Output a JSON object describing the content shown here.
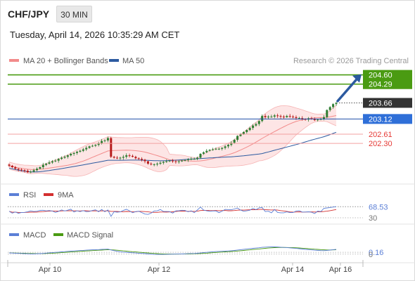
{
  "header": {
    "symbol": "CHF/JPY",
    "timeframe": "30 MIN",
    "datetime": "Tuesday, April 14, 2026 10:35:29 AM CET"
  },
  "legend": {
    "ma20": "MA 20 + Bollinger Bands",
    "ma50": "MA 50",
    "copyright": "Research © 2026 Trading Central"
  },
  "colors": {
    "candle_up": "#2e7d32",
    "candle_down": "#b71c1c",
    "ma20": "#f28b8b",
    "ma50": "#2c5aa0",
    "bollinger_fill": "#fde0e0",
    "target": "#4a9b12",
    "pivot": "#2f6fd8",
    "support": "#e53935",
    "current": "#333333",
    "rsi": "#5b7fd6",
    "rsi_ma": "#d32f2f",
    "macd": "#5b7fd6",
    "macd_signal": "#4a9b12"
  },
  "chart_data": [
    {
      "type": "candlestick",
      "series": [
        {
          "name": "MA 20 + Bollinger Bands"
        },
        {
          "name": "MA 50"
        }
      ],
      "ylim": [
        201.1,
        204.85
      ],
      "close_path": [
        201.55,
        201.5,
        201.45,
        201.42,
        201.4,
        201.38,
        201.33,
        201.35,
        201.4,
        201.45,
        201.5,
        201.58,
        201.62,
        201.66,
        201.7,
        201.72,
        201.78,
        201.82,
        201.85,
        201.9,
        201.95,
        201.98,
        202.02,
        202.05,
        202.1,
        202.15,
        202.2,
        202.22,
        202.25,
        202.3,
        202.38,
        202.4,
        202.48,
        201.85,
        201.82,
        201.8,
        201.82,
        201.85,
        201.9,
        201.88,
        201.85,
        201.8,
        201.78,
        201.75,
        201.7,
        201.62,
        201.6,
        201.6,
        201.62,
        201.65,
        201.68,
        201.7,
        201.72,
        201.7,
        201.68,
        201.7,
        201.72,
        201.74,
        201.76,
        201.78,
        201.78,
        201.82,
        201.95,
        202.0,
        202.05,
        202.08,
        202.1,
        202.12,
        202.12,
        202.15,
        202.2,
        202.25,
        202.32,
        202.42,
        202.55,
        202.62,
        202.68,
        202.75,
        202.82,
        202.9,
        202.95,
        203.05,
        203.22,
        203.18,
        203.2,
        203.2,
        203.24,
        203.22,
        203.2,
        203.18,
        203.22,
        203.2,
        203.18,
        203.15,
        203.15,
        203.12,
        203.1,
        203.14,
        203.12,
        203.08,
        203.1,
        203.12,
        203.18,
        203.42,
        203.52,
        203.62,
        203.66
      ],
      "levels": [
        {
          "value": "204.60",
          "kind": "target"
        },
        {
          "value": "204.29",
          "kind": "target"
        },
        {
          "value": "203.66",
          "kind": "current"
        },
        {
          "value": "203.12",
          "kind": "pivot"
        },
        {
          "value": "202.61",
          "kind": "support"
        },
        {
          "value": "202.30",
          "kind": "support"
        }
      ],
      "x_tick_labels": [
        "Apr 10",
        "Apr 12",
        "Apr 14",
        "Apr 16"
      ]
    },
    {
      "type": "line",
      "series": [
        {
          "name": "RSI"
        },
        {
          "name": "9MA"
        }
      ],
      "ylim": [
        20,
        90
      ],
      "levels": [
        {
          "value": "68.53",
          "kind": "current"
        },
        {
          "value": "30",
          "kind": "level"
        }
      ],
      "hidden_level": "30"
    },
    {
      "type": "line",
      "series": [
        {
          "name": "MACD"
        },
        {
          "name": "MACD Signal"
        }
      ],
      "ylim": [
        -0.5,
        1.2
      ],
      "levels": [
        {
          "value": "0.16",
          "kind": "current"
        },
        {
          "value": "0",
          "kind": "zero"
        }
      ]
    }
  ]
}
